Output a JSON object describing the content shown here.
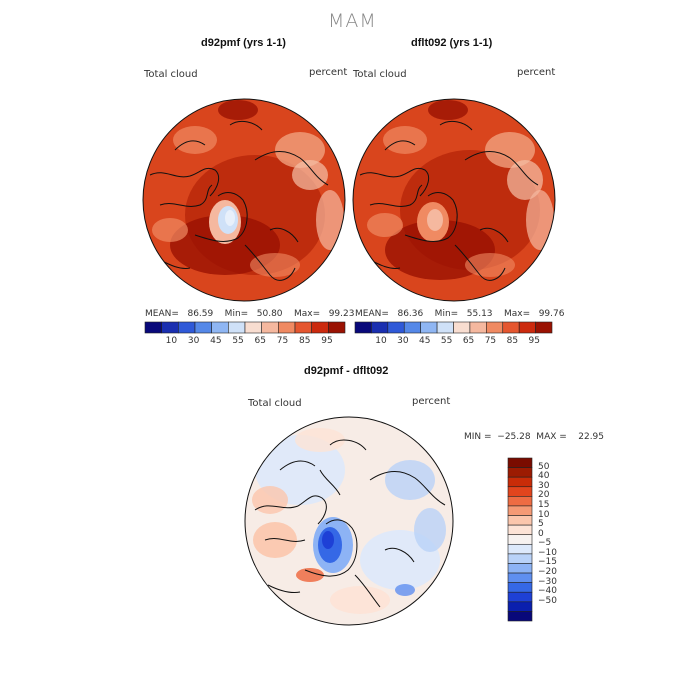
{
  "suptitle": "MAM",
  "colors": {
    "warm_scale": [
      "#08087a",
      "#1a2fb0",
      "#2f59d8",
      "#5588e8",
      "#8fb6f3",
      "#cfe1f8",
      "#f8ddd0",
      "#f5b89f",
      "#f08a62",
      "#e5562f",
      "#cc2a0e",
      "#9a1202"
    ],
    "diff_scale": [
      "#08087a",
      "#0a1fae",
      "#1e40d6",
      "#3568e6",
      "#5f8ff0",
      "#8db3f5",
      "#b9d2f8",
      "#dde9fb",
      "#f7f2f0",
      "#fde3d6",
      "#fbc6ac",
      "#f59a75",
      "#ee6c43",
      "#e2451d",
      "#c92c08",
      "#9c1b02",
      "#7a0c00"
    ]
  },
  "panels": [
    {
      "title": "d92pmf (yrs 1-1)",
      "var_label": "Total cloud",
      "unit_label": "percent",
      "stats": "MEAN=   86.59    Min=   50.80    Max=   99.23"
    },
    {
      "title": "dflt092 (yrs 1-1)",
      "var_label": "Total cloud",
      "unit_label": "percent",
      "stats": "MEAN=   86.36    Min=   55.13    Max=   99.76"
    }
  ],
  "diff_panel": {
    "title": "d92pmf - dflt092",
    "var_label": "Total cloud",
    "unit_label": "percent",
    "stats": "MIN =  −25.28  MAX =    22.95"
  },
  "chart_data": [
    {
      "type": "heatmap",
      "title": "d92pmf (yrs 1-1)",
      "projection": "north-polar stereographic",
      "variable": "Total cloud",
      "unit": "percent",
      "mean": 86.59,
      "min": 50.8,
      "max": 99.23,
      "colorbar_ticks": [
        "10",
        "30",
        "45",
        "55",
        "65",
        "75",
        "85",
        "95"
      ]
    },
    {
      "type": "heatmap",
      "title": "dflt092 (yrs 1-1)",
      "projection": "north-polar stereographic",
      "variable": "Total cloud",
      "unit": "percent",
      "mean": 86.36,
      "min": 55.13,
      "max": 99.76,
      "colorbar_ticks": [
        "10",
        "30",
        "45",
        "55",
        "65",
        "75",
        "85",
        "95"
      ]
    },
    {
      "type": "heatmap",
      "title": "d92pmf - dflt092",
      "projection": "north-polar stereographic",
      "variable": "Total cloud",
      "unit": "percent",
      "min": -25.28,
      "max": 22.95,
      "colorbar_ticks": [
        "50",
        "40",
        "30",
        "20",
        "15",
        "10",
        "5",
        "0",
        "−5",
        "−10",
        "−15",
        "−20",
        "−30",
        "−40",
        "−50"
      ]
    }
  ]
}
